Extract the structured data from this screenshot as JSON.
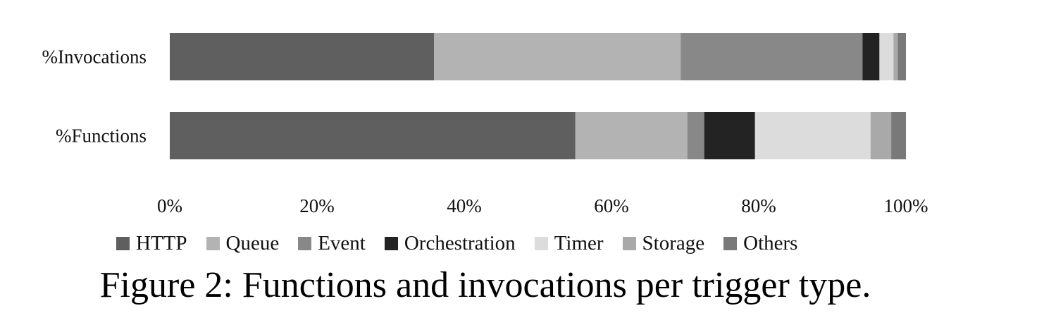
{
  "chart_data": {
    "type": "bar",
    "orientation": "horizontal",
    "stacked": true,
    "categories": [
      "%Invocations",
      "%Functions"
    ],
    "series": [
      {
        "name": "HTTP",
        "color": "#5f5f5f",
        "values": [
          35.9,
          55.1
        ]
      },
      {
        "name": "Queue",
        "color": "#b3b3b3",
        "values": [
          33.5,
          15.2
        ]
      },
      {
        "name": "Event",
        "color": "#888888",
        "values": [
          24.7,
          2.3
        ]
      },
      {
        "name": "Orchestration",
        "color": "#232323",
        "values": [
          2.3,
          6.9
        ]
      },
      {
        "name": "Timer",
        "color": "#dcdcdc",
        "values": [
          1.9,
          15.7
        ]
      },
      {
        "name": "Storage",
        "color": "#a9a9a9",
        "values": [
          0.6,
          2.8
        ]
      },
      {
        "name": "Others",
        "color": "#797979",
        "values": [
          1.1,
          2.0
        ]
      }
    ],
    "xlim": [
      0,
      100
    ],
    "x_ticks": [
      "0%",
      "20%",
      "40%",
      "60%",
      "80%",
      "100%"
    ],
    "grid": false,
    "legend_position": "bottom"
  },
  "caption": "Figure 2: Functions and invocations per trigger type."
}
